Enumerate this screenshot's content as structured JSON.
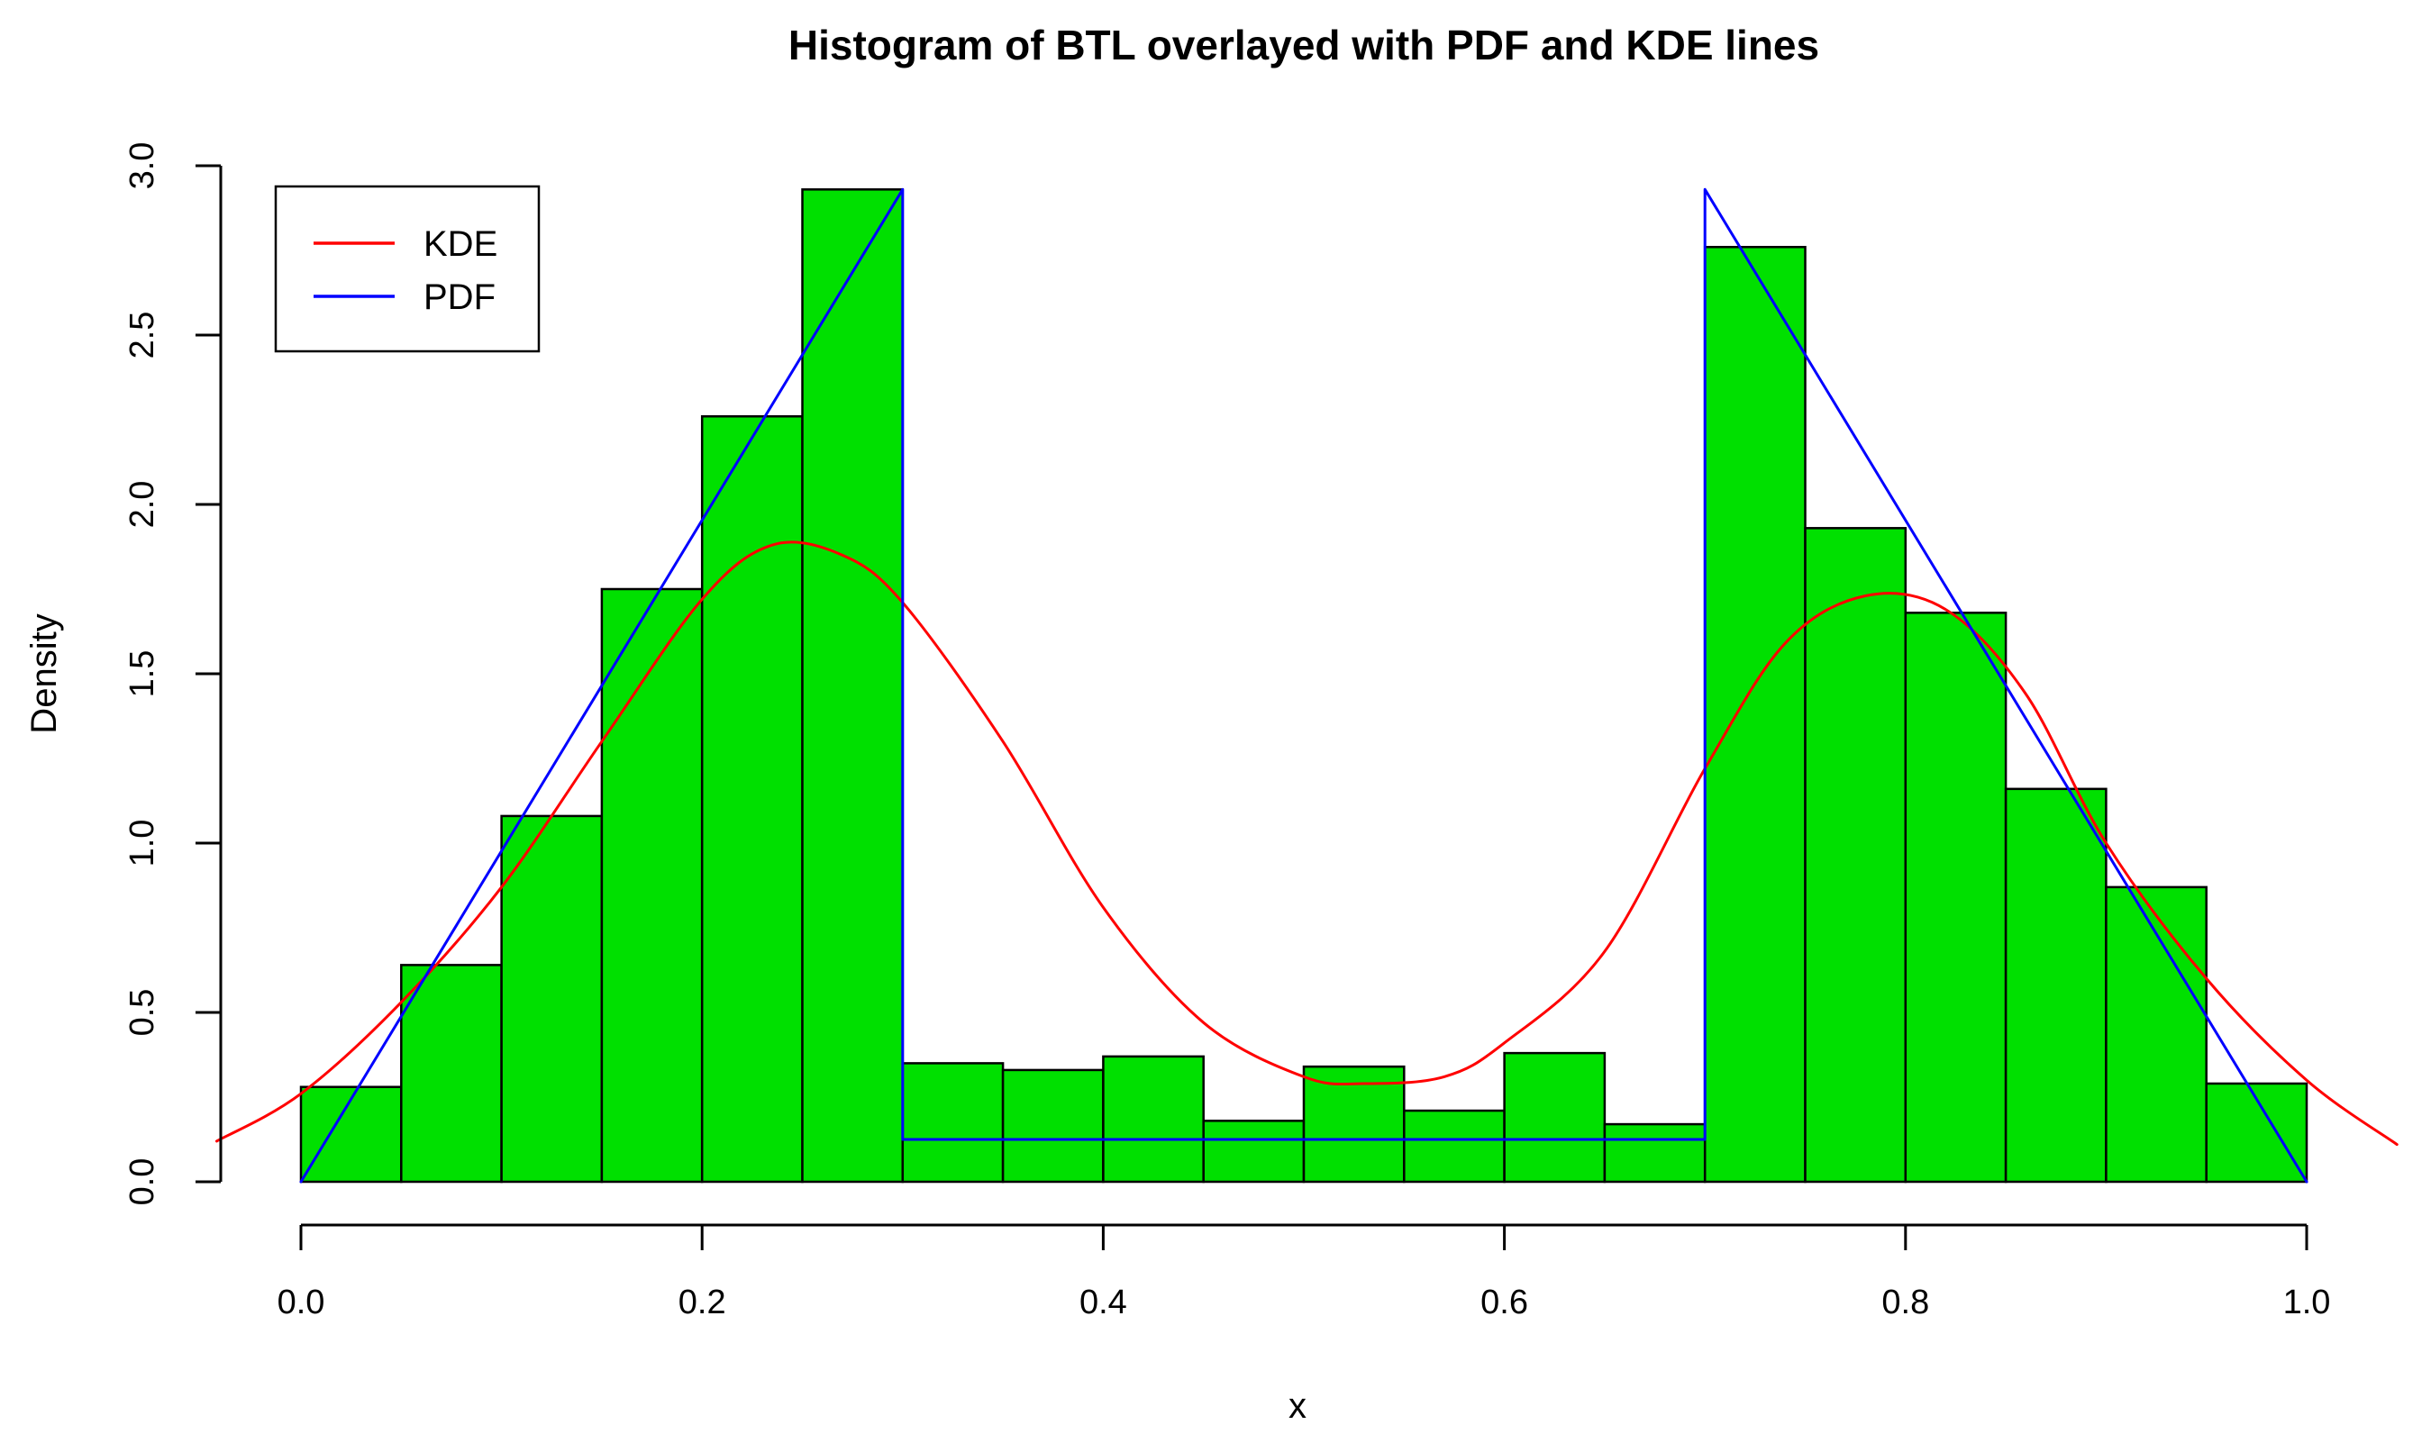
{
  "chart_data": {
    "type": "bar",
    "subtype": "density-histogram-with-overlaid-lines",
    "title": "Histogram of BTL overlayed with PDF and KDE lines",
    "xlabel": "x",
    "ylabel": "Density",
    "xlim": [
      -0.042,
      1.045
    ],
    "ylim": [
      0,
      3
    ],
    "grid": "off",
    "x_ticks": {
      "values": [
        0.0,
        0.2,
        0.4,
        0.6,
        0.8,
        1.0
      ],
      "labels": [
        "0.0",
        "0.2",
        "0.4",
        "0.6",
        "0.8",
        "1.0"
      ]
    },
    "y_ticks": {
      "values": [
        0.0,
        0.5,
        1.0,
        1.5,
        2.0,
        2.5,
        3.0
      ],
      "labels": [
        "0.0",
        "0.5",
        "1.0",
        "1.5",
        "2.0",
        "2.5",
        "3.0"
      ]
    },
    "histogram": {
      "bin_width": 0.05,
      "bin_start": 0.0,
      "fill_color": "#00E000",
      "border_color": "#000000",
      "bins": [
        {
          "x0": 0.0,
          "x1": 0.05,
          "density": 0.28
        },
        {
          "x0": 0.05,
          "x1": 0.1,
          "density": 0.64
        },
        {
          "x0": 0.1,
          "x1": 0.15,
          "density": 1.08
        },
        {
          "x0": 0.15,
          "x1": 0.2,
          "density": 1.75
        },
        {
          "x0": 0.2,
          "x1": 0.25,
          "density": 2.26
        },
        {
          "x0": 0.25,
          "x1": 0.3,
          "density": 2.93
        },
        {
          "x0": 0.3,
          "x1": 0.35,
          "density": 0.35
        },
        {
          "x0": 0.35,
          "x1": 0.4,
          "density": 0.33
        },
        {
          "x0": 0.4,
          "x1": 0.45,
          "density": 0.37
        },
        {
          "x0": 0.45,
          "x1": 0.5,
          "density": 0.18
        },
        {
          "x0": 0.5,
          "x1": 0.55,
          "density": 0.34
        },
        {
          "x0": 0.55,
          "x1": 0.6,
          "density": 0.21
        },
        {
          "x0": 0.6,
          "x1": 0.65,
          "density": 0.38
        },
        {
          "x0": 0.65,
          "x1": 0.7,
          "density": 0.17
        },
        {
          "x0": 0.7,
          "x1": 0.75,
          "density": 2.76
        },
        {
          "x0": 0.75,
          "x1": 0.8,
          "density": 1.93
        },
        {
          "x0": 0.8,
          "x1": 0.85,
          "density": 1.68
        },
        {
          "x0": 0.85,
          "x1": 0.9,
          "density": 1.16
        },
        {
          "x0": 0.9,
          "x1": 0.95,
          "density": 0.87
        },
        {
          "x0": 0.95,
          "x1": 1.0,
          "density": 0.29
        }
      ]
    },
    "series": [
      {
        "name": "KDE",
        "color": "#FF0000",
        "style": "smooth-curve",
        "points": [
          [
            -0.042,
            0.12
          ],
          [
            0.0,
            0.26
          ],
          [
            0.05,
            0.53
          ],
          [
            0.1,
            0.87
          ],
          [
            0.15,
            1.3
          ],
          [
            0.2,
            1.72
          ],
          [
            0.235,
            1.88
          ],
          [
            0.27,
            1.85
          ],
          [
            0.3,
            1.71
          ],
          [
            0.35,
            1.3
          ],
          [
            0.4,
            0.81
          ],
          [
            0.45,
            0.47
          ],
          [
            0.5,
            0.31
          ],
          [
            0.53,
            0.29
          ],
          [
            0.57,
            0.31
          ],
          [
            0.6,
            0.41
          ],
          [
            0.65,
            0.68
          ],
          [
            0.7,
            1.22
          ],
          [
            0.74,
            1.59
          ],
          [
            0.78,
            1.73
          ],
          [
            0.82,
            1.69
          ],
          [
            0.86,
            1.44
          ],
          [
            0.9,
            1.0
          ],
          [
            0.95,
            0.6
          ],
          [
            1.0,
            0.3
          ],
          [
            1.045,
            0.11
          ]
        ]
      },
      {
        "name": "PDF",
        "color": "#0000FF",
        "style": "polyline",
        "points": [
          [
            0.0,
            0.0
          ],
          [
            0.3,
            2.93
          ],
          [
            0.3,
            0.125
          ],
          [
            0.7,
            0.125
          ],
          [
            0.7,
            2.93
          ],
          [
            1.0,
            0.0
          ]
        ]
      }
    ],
    "legend": {
      "position": "top-left",
      "entries": [
        {
          "label": "KDE",
          "color": "#FF0000"
        },
        {
          "label": "PDF",
          "color": "#0000FF"
        }
      ]
    },
    "colors": {
      "background": "#FFFFFF",
      "axis": "#000000",
      "text": "#000000"
    }
  }
}
